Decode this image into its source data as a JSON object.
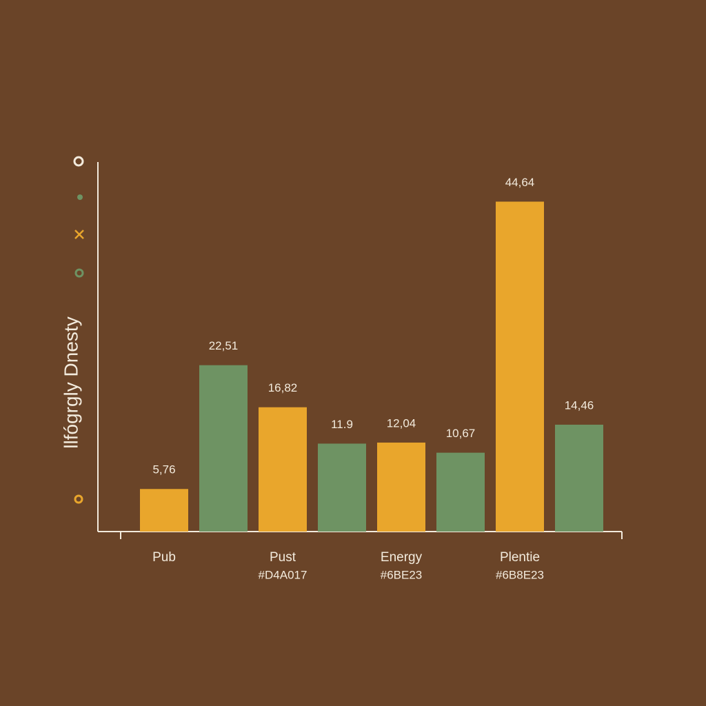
{
  "chart_data": {
    "type": "bar",
    "y_label": "llfógrgly Dnesty",
    "categories": [
      "Pub",
      "Pust",
      "Energy",
      "Plentie"
    ],
    "category_sublabels": [
      null,
      "#D4A017",
      "#6BE23",
      "#6B8E23"
    ],
    "series": [
      {
        "color": "#E9A62C",
        "values": [
          5.76,
          16.82,
          12.04,
          44.64
        ],
        "value_labels": [
          "5,76",
          "16,82",
          "12,04",
          "44,64"
        ]
      },
      {
        "color": "#6E9363",
        "values": [
          22.51,
          11.9,
          10.67,
          14.46
        ],
        "value_labels": [
          "22,51",
          "11.9",
          "10,67",
          "14,46"
        ]
      }
    ],
    "ylim": [
      0,
      50
    ]
  }
}
